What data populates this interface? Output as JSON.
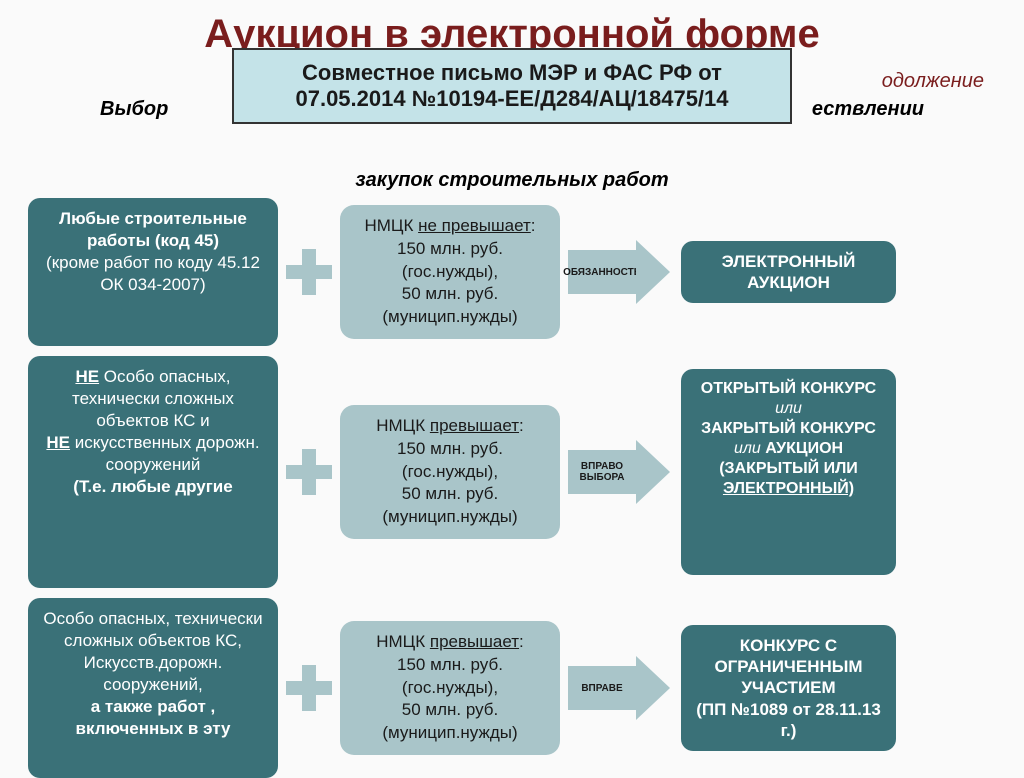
{
  "title": "Аукцион в электронной форме",
  "continuation": "одолжение",
  "notice": "Совместное письмо МЭР и ФАС РФ  от 07.05.2014 №10194-ЕЕ/Д284/АЦ/18475/14",
  "subtitle_left": "Выбор",
  "subtitle_right": "ествлении",
  "subtitle_bottom": "закупок строительных работ",
  "colors": {
    "title": "#7a1d1d",
    "teal": "#3a7178",
    "light": "#a9c5c9",
    "notice_bg": "#c4e3e8",
    "page_bg": "#fafafa"
  },
  "rows": [
    {
      "col1_html": "<b>Любые строительные работы (код 45)</b><br>(кроме работ по коду 45.12  ОК 034-2007)",
      "col2_html": "НМЦК <span class='u'>не превышает</span>:<br>150 млн. руб. (гос.нужды),<br>50 млн. руб. (муницип.нужды)",
      "arrow_label": "ОБЯЗАННОСТЬ",
      "col3_html": "ЭЛЕКТРОННЫЙ АУКЦИОН"
    },
    {
      "col1_html": "<span class='u'><b>НЕ</b></span> Особо опасных, технически сложных объектов КС и<br><span class='u'><b>НЕ</b></span> искусственных дорожн. сооружений<br><b>(Т.е. любые другие</b>",
      "col2_html": "НМЦК <span class='u'>превышает</span>:<br>150 млн. руб. (гос.нужды),<br>50 млн. руб. (муницип.нужды)",
      "arrow_label": "ВПРАВО ВЫБОРА",
      "col3_html": "ОТКРЫТЫЙ КОНКУРС<br><span class='i'>или</span><br>ЗАКРЫТЫЙ КОНКУРС<br><span class='i'>или</span>  АУКЦИОН (ЗАКРЫТЫЙ ИЛИ <span class='u'>ЭЛЕКТРОННЫЙ)</span>"
    },
    {
      "col1_html": "Особо опасных, технически сложных объектов КС,<br>Искусств.дорожн. сооружений,<br><b>а также работ , включенных в эту</b>",
      "col2_html": "НМЦК <span class='u'>превышает</span>:<br>150 млн. руб. (гос.нужды),<br>50 млн. руб. (муницип.нужды)",
      "arrow_label": "ВПРАВЕ",
      "col3_html": "КОНКУРС С ОГРАНИЧЕННЫМ УЧАСТИЕМ<br>(ПП №1089 от 28.11.13 г.)"
    }
  ]
}
